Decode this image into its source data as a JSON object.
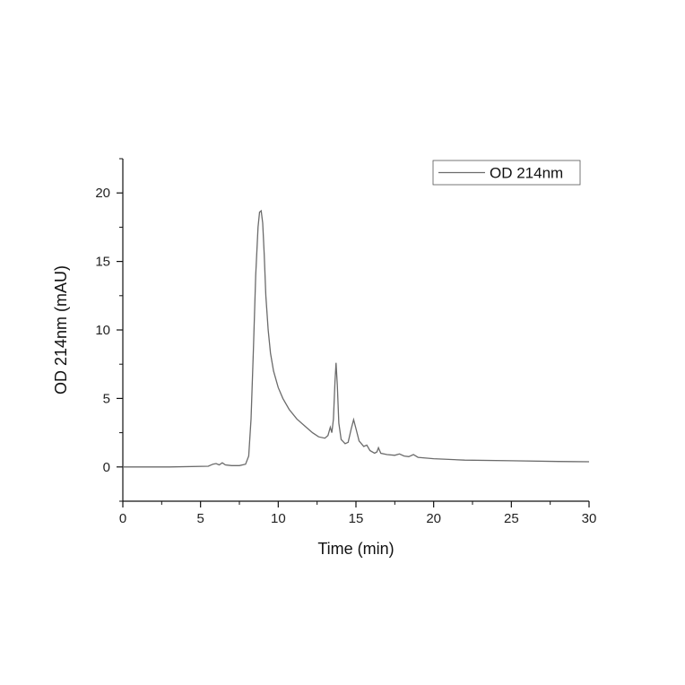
{
  "chart_data": {
    "type": "line",
    "title": "",
    "xlabel": "Time (min)",
    "ylabel": "OD 214nm (mAU)",
    "xlim": [
      0,
      30
    ],
    "ylim": [
      -2.5,
      22.5
    ],
    "x_ticks": [
      0,
      5,
      10,
      15,
      20,
      25,
      30
    ],
    "y_ticks": [
      0,
      5,
      10,
      15,
      20
    ],
    "grid": false,
    "legend_position": "top-right",
    "series": [
      {
        "name": "OD 214nm",
        "color": "#6b6b6b",
        "points": [
          [
            0,
            0.0
          ],
          [
            3.0,
            0.0
          ],
          [
            5.5,
            0.05
          ],
          [
            5.8,
            0.2
          ],
          [
            6.0,
            0.25
          ],
          [
            6.2,
            0.15
          ],
          [
            6.4,
            0.3
          ],
          [
            6.6,
            0.15
          ],
          [
            7.0,
            0.1
          ],
          [
            7.5,
            0.1
          ],
          [
            7.9,
            0.2
          ],
          [
            8.1,
            0.8
          ],
          [
            8.25,
            3.5
          ],
          [
            8.4,
            8.5
          ],
          [
            8.55,
            14.0
          ],
          [
            8.7,
            17.5
          ],
          [
            8.8,
            18.6
          ],
          [
            8.9,
            18.7
          ],
          [
            9.0,
            17.8
          ],
          [
            9.1,
            15.5
          ],
          [
            9.2,
            12.5
          ],
          [
            9.35,
            10.0
          ],
          [
            9.5,
            8.3
          ],
          [
            9.7,
            7.0
          ],
          [
            10.0,
            5.8
          ],
          [
            10.3,
            5.0
          ],
          [
            10.7,
            4.2
          ],
          [
            11.2,
            3.5
          ],
          [
            11.7,
            3.0
          ],
          [
            12.2,
            2.5
          ],
          [
            12.6,
            2.2
          ],
          [
            13.0,
            2.1
          ],
          [
            13.2,
            2.3
          ],
          [
            13.35,
            2.9
          ],
          [
            13.45,
            2.5
          ],
          [
            13.55,
            3.5
          ],
          [
            13.65,
            6.2
          ],
          [
            13.72,
            7.6
          ],
          [
            13.8,
            6.0
          ],
          [
            13.9,
            3.2
          ],
          [
            14.05,
            2.0
          ],
          [
            14.3,
            1.7
          ],
          [
            14.5,
            1.8
          ],
          [
            14.7,
            2.8
          ],
          [
            14.85,
            3.45
          ],
          [
            15.0,
            2.8
          ],
          [
            15.2,
            1.9
          ],
          [
            15.5,
            1.5
          ],
          [
            15.7,
            1.6
          ],
          [
            15.9,
            1.2
          ],
          [
            16.2,
            1.0
          ],
          [
            16.35,
            1.1
          ],
          [
            16.45,
            1.4
          ],
          [
            16.6,
            1.0
          ],
          [
            17.0,
            0.9
          ],
          [
            17.5,
            0.85
          ],
          [
            17.8,
            0.95
          ],
          [
            18.1,
            0.8
          ],
          [
            18.4,
            0.75
          ],
          [
            18.7,
            0.9
          ],
          [
            19.0,
            0.7
          ],
          [
            20.0,
            0.6
          ],
          [
            22.0,
            0.5
          ],
          [
            25.0,
            0.45
          ],
          [
            28.0,
            0.4
          ],
          [
            30.0,
            0.38
          ]
        ]
      }
    ]
  }
}
